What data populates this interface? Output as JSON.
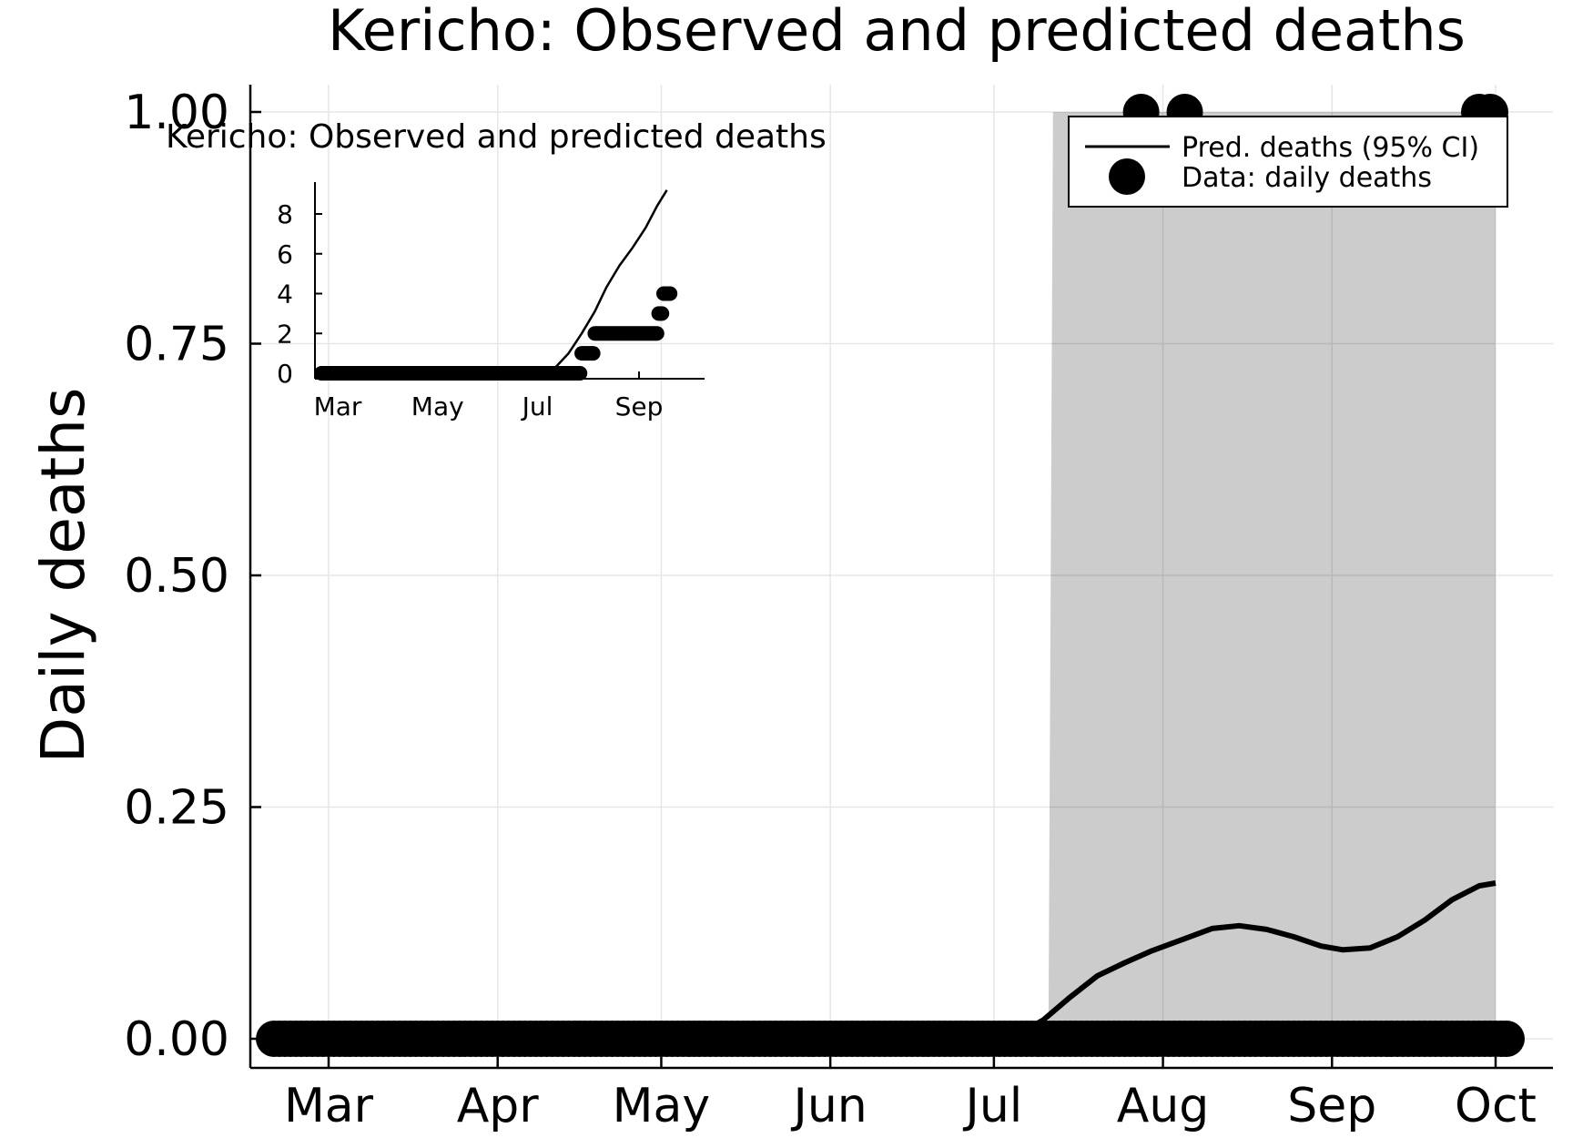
{
  "chart_data": [
    {
      "type": "line",
      "title": "Kericho: Observed and predicted deaths",
      "xlabel": "",
      "ylabel": "Daily deaths",
      "ylim": [
        -0.03,
        1.03
      ],
      "x_ticks": [
        "Mar",
        "Apr",
        "May",
        "Jun",
        "Jul",
        "Aug",
        "Sep",
        "Oct"
      ],
      "y_ticks": [
        "0.00",
        "0.25",
        "0.50",
        "0.75",
        "1.00"
      ],
      "grid": true,
      "legend_position": "top-right",
      "legend": [
        "Pred. deaths (95% CI)",
        "Data: daily deaths"
      ],
      "series": [
        {
          "name": "Pred. deaths (95% CI)",
          "type": "line",
          "points": [
            [
              "2020-07-01",
              0.0
            ],
            [
              "2020-07-05",
              0.003
            ],
            [
              "2020-07-10",
              0.02
            ],
            [
              "2020-07-15",
              0.045
            ],
            [
              "2020-07-20",
              0.068
            ],
            [
              "2020-07-25",
              0.082
            ],
            [
              "2020-07-30",
              0.095
            ],
            [
              "2020-08-05",
              0.108
            ],
            [
              "2020-08-10",
              0.119
            ],
            [
              "2020-08-15",
              0.122
            ],
            [
              "2020-08-20",
              0.118
            ],
            [
              "2020-08-25",
              0.11
            ],
            [
              "2020-08-30",
              0.1
            ],
            [
              "2020-09-03",
              0.096
            ],
            [
              "2020-09-08",
              0.098
            ],
            [
              "2020-09-13",
              0.11
            ],
            [
              "2020-09-18",
              0.128
            ],
            [
              "2020-09-23",
              0.15
            ],
            [
              "2020-09-28",
              0.165
            ],
            [
              "2020-10-01",
              0.168
            ]
          ],
          "ci_band": {
            "from": "2020-07-11",
            "to": "2020-10-01",
            "lower": 0.0,
            "upper": 1.0
          }
        },
        {
          "name": "Data: daily deaths",
          "type": "scatter",
          "zero_range": [
            "2020-02-20",
            "2020-10-03"
          ],
          "ones": [
            "2020-07-28",
            "2020-08-05",
            "2020-09-28",
            "2020-09-30"
          ]
        }
      ]
    },
    {
      "type": "line",
      "title": "Kericho: Observed and predicted deaths",
      "x_ticks": [
        "Mar",
        "May",
        "Jul",
        "Sep"
      ],
      "y_ticks": [
        "0",
        "2",
        "4",
        "6",
        "8"
      ],
      "ylim": [
        -0.3,
        9.3
      ],
      "series": [
        {
          "name": "Pred. deaths (95% CI)",
          "type": "line",
          "points": [
            [
              "2020-06-25",
              0.0
            ],
            [
              "2020-07-05",
              0.05
            ],
            [
              "2020-07-12",
              0.3
            ],
            [
              "2020-07-20",
              1.0
            ],
            [
              "2020-07-28",
              2.0
            ],
            [
              "2020-08-05",
              3.1
            ],
            [
              "2020-08-12",
              4.3
            ],
            [
              "2020-08-20",
              5.4
            ],
            [
              "2020-08-28",
              6.3
            ],
            [
              "2020-09-05",
              7.3
            ],
            [
              "2020-09-12",
              8.4
            ],
            [
              "2020-09-18",
              9.2
            ]
          ]
        },
        {
          "name": "Data: daily deaths",
          "type": "scatter",
          "steps": [
            {
              "from": "2020-02-20",
              "to": "2020-07-28",
              "value": 0
            },
            {
              "from": "2020-07-28",
              "to": "2020-08-05",
              "value": 1
            },
            {
              "from": "2020-08-05",
              "to": "2020-09-13",
              "value": 2
            },
            {
              "from": "2020-09-13",
              "to": "2020-09-16",
              "value": 3
            },
            {
              "from": "2020-09-16",
              "to": "2020-09-21",
              "value": 4
            }
          ]
        }
      ]
    }
  ]
}
